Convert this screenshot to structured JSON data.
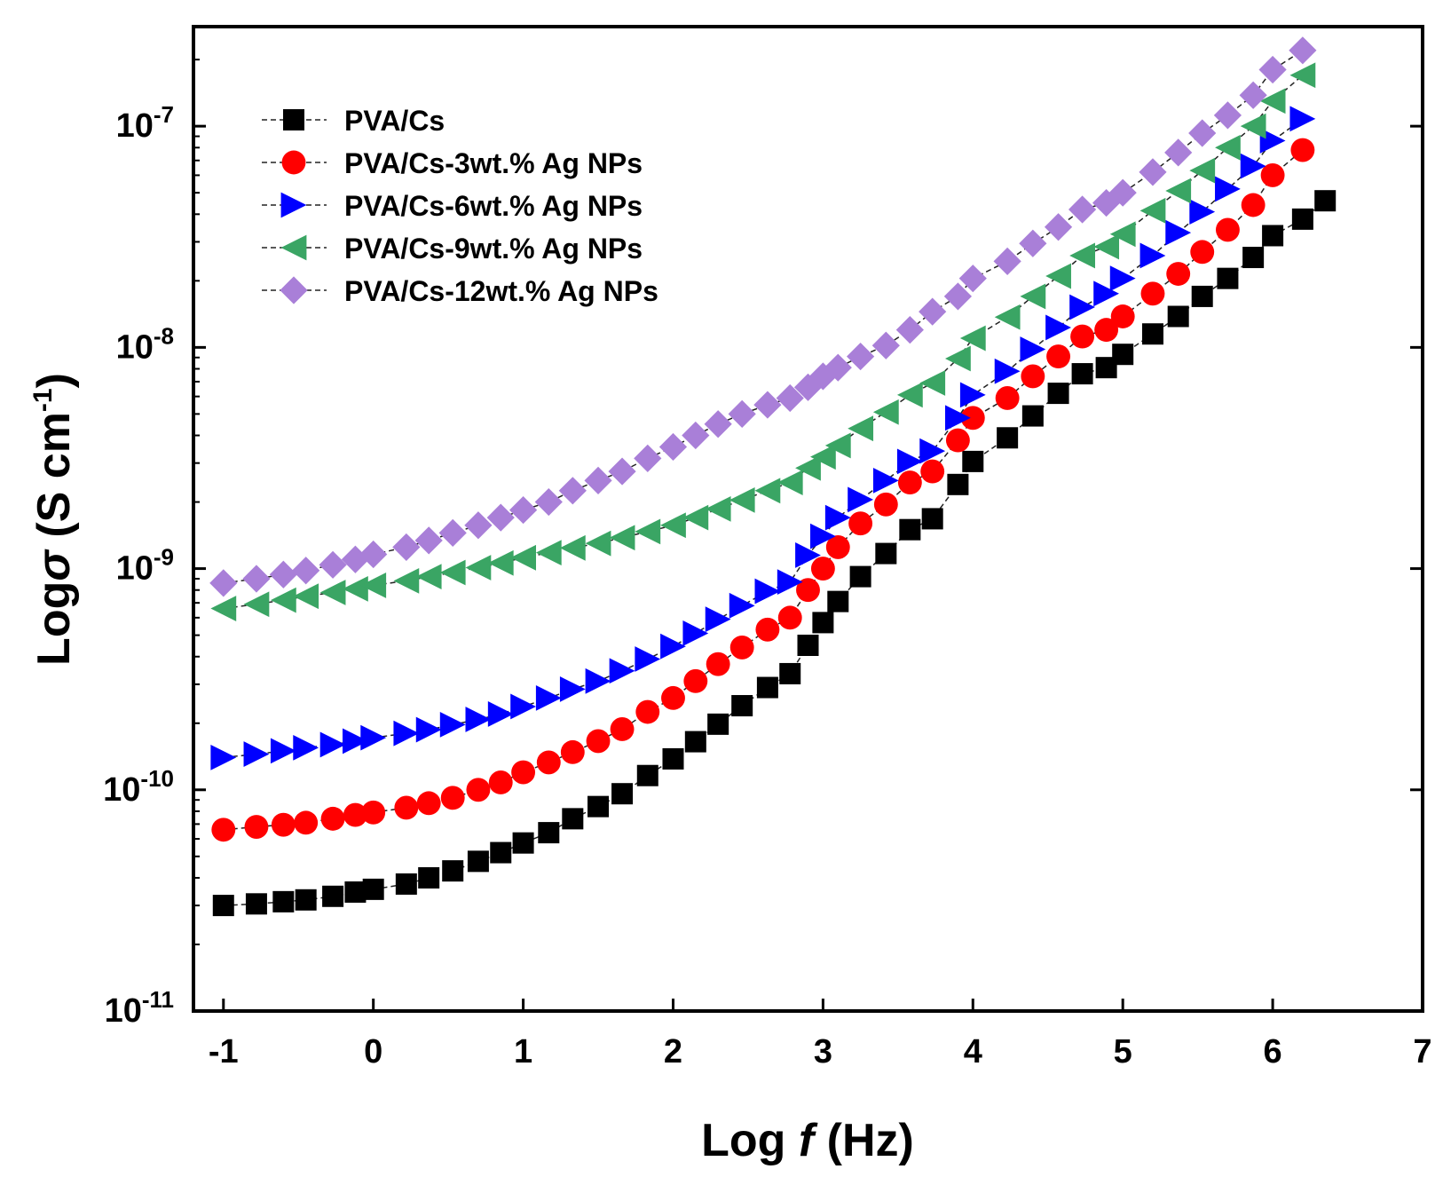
{
  "chart_data": {
    "type": "scatter",
    "title": "",
    "xlabel_parts": [
      "Log ",
      "f",
      " (Hz)"
    ],
    "ylabel_parts": [
      "Log",
      "σ",
      " (S cm",
      "-1",
      ")"
    ],
    "xlim": [
      -1.2,
      7
    ],
    "ylim_log10": [
      -11,
      -6.55
    ],
    "x_ticks": [
      -1,
      0,
      1,
      2,
      3,
      4,
      5,
      6,
      7
    ],
    "x_tick_labels": [
      "-1",
      "0",
      "1",
      "2",
      "3",
      "4",
      "5",
      "6",
      "7"
    ],
    "y_ticks": [
      {
        "base": "10",
        "exp": "-7",
        "value": -7
      },
      {
        "base": "10",
        "exp": "-8",
        "value": -8
      },
      {
        "base": "10",
        "exp": "-9",
        "value": -9
      },
      {
        "base": "10",
        "exp": "-10",
        "value": -10
      },
      {
        "base": "10",
        "exp": "-11",
        "value": -11
      }
    ],
    "legend_position": "top-left",
    "x": [
      -1.0,
      -0.78,
      -0.6,
      -0.45,
      -0.27,
      -0.12,
      0.0,
      0.22,
      0.37,
      0.53,
      0.7,
      0.85,
      1.0,
      1.17,
      1.33,
      1.5,
      1.66,
      1.83,
      2.0,
      2.15,
      2.3,
      2.46,
      2.63,
      2.78,
      2.9,
      3.0,
      3.1,
      3.25,
      3.42,
      3.58,
      3.73,
      3.9,
      4.0,
      4.23,
      4.4,
      4.57,
      4.73,
      4.89,
      5.0,
      5.2,
      5.37,
      5.53,
      5.7,
      5.87,
      6.0,
      6.2
    ],
    "series": [
      {
        "name": "PVA/Cs",
        "marker": "square",
        "color": "#000000",
        "values": [
          3e-11,
          3.05e-11,
          3.12e-11,
          3.18e-11,
          3.3e-11,
          3.45e-11,
          3.55e-11,
          3.75e-11,
          4e-11,
          4.3e-11,
          4.75e-11,
          5.2e-11,
          5.75e-11,
          6.4e-11,
          7.4e-11,
          8.4e-11,
          9.6e-11,
          1.16e-10,
          1.38e-10,
          1.65e-10,
          1.98e-10,
          2.4e-10,
          2.9e-10,
          3.35e-10,
          4.5e-10,
          5.7e-10,
          7.1e-10,
          9.2e-10,
          1.17e-09,
          1.5e-09,
          1.68e-09,
          2.4e-09,
          3.05e-09,
          3.9e-09,
          4.9e-09,
          6.2e-09,
          7.6e-09,
          8.1e-09,
          9.3e-09,
          1.15e-08,
          1.38e-08,
          1.7e-08,
          2.05e-08,
          2.55e-08,
          3.2e-08,
          3.8e-08
        ],
        "extra_points": [
          {
            "x": 6.35,
            "y": 4.6e-08
          }
        ]
      },
      {
        "name": "PVA/Cs-3wt.% Ag NPs",
        "marker": "circle",
        "color": "#ff0000",
        "values": [
          6.6e-11,
          6.8e-11,
          6.95e-11,
          7.1e-11,
          7.4e-11,
          7.7e-11,
          7.9e-11,
          8.3e-11,
          8.7e-11,
          9.2e-11,
          1e-10,
          1.08e-10,
          1.2e-10,
          1.33e-10,
          1.48e-10,
          1.66e-10,
          1.88e-10,
          2.25e-10,
          2.6e-10,
          3.1e-10,
          3.7e-10,
          4.4e-10,
          5.3e-10,
          6e-10,
          8e-10,
          1e-09,
          1.25e-09,
          1.6e-09,
          1.95e-09,
          2.45e-09,
          2.75e-09,
          3.8e-09,
          4.8e-09,
          5.9e-09,
          7.4e-09,
          9.1e-09,
          1.12e-08,
          1.2e-08,
          1.38e-08,
          1.75e-08,
          2.15e-08,
          2.7e-08,
          3.4e-08,
          4.4e-08,
          6e-08,
          7.8e-08
        ]
      },
      {
        "name": "PVA/Cs-6wt.% Ag NPs",
        "marker": "triangle-right",
        "color": "#0000ff",
        "values": [
          1.4e-10,
          1.45e-10,
          1.5e-10,
          1.55e-10,
          1.6e-10,
          1.66e-10,
          1.72e-10,
          1.8e-10,
          1.87e-10,
          1.97e-10,
          2.08e-10,
          2.2e-10,
          2.38e-10,
          2.6e-10,
          2.85e-10,
          3.1e-10,
          3.45e-10,
          3.9e-10,
          4.45e-10,
          5.1e-10,
          5.9e-10,
          6.8e-10,
          7.9e-10,
          8.7e-10,
          1.15e-09,
          1.4e-09,
          1.7e-09,
          2.05e-09,
          2.5e-09,
          3.05e-09,
          3.4e-09,
          4.8e-09,
          6.1e-09,
          7.8e-09,
          9.8e-09,
          1.23e-08,
          1.52e-08,
          1.75e-08,
          2.05e-08,
          2.6e-08,
          3.3e-08,
          4.1e-08,
          5.2e-08,
          6.6e-08,
          8.6e-08,
          1.08e-07
        ]
      },
      {
        "name": "PVA/Cs-9wt.% Ag NPs",
        "marker": "triangle-left",
        "color": "#3aa564",
        "values": [
          6.6e-10,
          6.9e-10,
          7.2e-10,
          7.5e-10,
          7.8e-10,
          8.1e-10,
          8.4e-10,
          8.8e-10,
          9.2e-10,
          9.6e-10,
          1.01e-09,
          1.06e-09,
          1.12e-09,
          1.18e-09,
          1.24e-09,
          1.3e-09,
          1.38e-09,
          1.47e-09,
          1.57e-09,
          1.7e-09,
          1.86e-09,
          2.04e-09,
          2.25e-09,
          2.45e-09,
          2.85e-09,
          3.2e-09,
          3.6e-09,
          4.3e-09,
          5.1e-09,
          6.1e-09,
          6.9e-09,
          8.9e-09,
          1.1e-08,
          1.37e-08,
          1.7e-08,
          2.1e-08,
          2.6e-08,
          2.85e-08,
          3.25e-08,
          4.15e-08,
          5.1e-08,
          6.3e-08,
          8e-08,
          1e-07,
          1.3e-07,
          1.7e-07
        ]
      },
      {
        "name": "PVA/Cs-12wt.% Ag NPs",
        "marker": "diamond",
        "color": "#a97fd8",
        "values": [
          8.6e-10,
          9e-10,
          9.4e-10,
          9.8e-10,
          1.04e-09,
          1.1e-09,
          1.16e-09,
          1.25e-09,
          1.34e-09,
          1.45e-09,
          1.57e-09,
          1.7e-09,
          1.84e-09,
          2e-09,
          2.25e-09,
          2.5e-09,
          2.75e-09,
          3.15e-09,
          3.55e-09,
          4e-09,
          4.5e-09,
          5e-09,
          5.5e-09,
          5.9e-09,
          6.6e-09,
          7.4e-09,
          8.1e-09,
          9.1e-09,
          1.02e-08,
          1.2e-08,
          1.45e-08,
          1.7e-08,
          2.05e-08,
          2.45e-08,
          2.95e-08,
          3.5e-08,
          4.2e-08,
          4.5e-08,
          5e-08,
          6.2e-08,
          7.6e-08,
          9.3e-08,
          1.12e-07,
          1.38e-07,
          1.8e-07,
          2.2e-07
        ]
      }
    ]
  }
}
